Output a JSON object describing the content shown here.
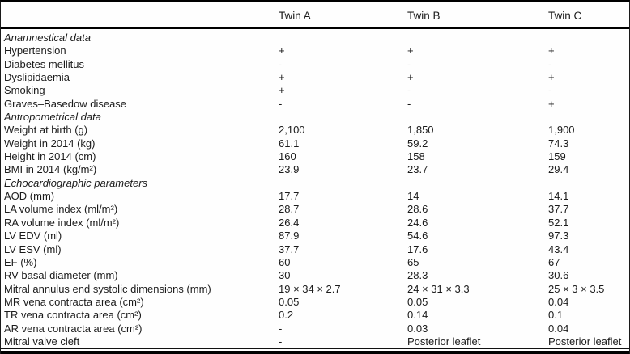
{
  "colors": {
    "text": "#1b1b1b",
    "rule": "#000000",
    "background": "#fefefe"
  },
  "table": {
    "columns": [
      "",
      "Twin A",
      "Twin B",
      "Twin C"
    ],
    "rows": [
      {
        "type": "section",
        "label": "Anamnestical data"
      },
      {
        "type": "data",
        "label": "Hypertension",
        "values": [
          "+",
          "+",
          "+"
        ]
      },
      {
        "type": "data",
        "label": "Diabetes mellitus",
        "values": [
          "-",
          "-",
          "-"
        ]
      },
      {
        "type": "data",
        "label": "Dyslipidaemia",
        "values": [
          "+",
          "+",
          "+"
        ]
      },
      {
        "type": "data",
        "label": "Smoking",
        "values": [
          "+",
          "-",
          "-"
        ]
      },
      {
        "type": "data",
        "label": "Graves–Basedow disease",
        "values": [
          "-",
          "-",
          "+"
        ]
      },
      {
        "type": "section",
        "label": "Antropometrical data"
      },
      {
        "type": "data",
        "label": "Weight at birth (g)",
        "values": [
          "2,100",
          "1,850",
          "1,900"
        ]
      },
      {
        "type": "data",
        "label": "Weight in 2014 (kg)",
        "values": [
          "61.1",
          "59.2",
          "74.3"
        ]
      },
      {
        "type": "data",
        "label": "Height in 2014 (cm)",
        "values": [
          "160",
          "158",
          "159"
        ]
      },
      {
        "type": "data",
        "label": "BMI in 2014 (kg/m²)",
        "values": [
          "23.9",
          "23.7",
          "29.4"
        ]
      },
      {
        "type": "section",
        "label": "Echocardiographic parameters"
      },
      {
        "type": "data",
        "label": "AOD (mm)",
        "values": [
          "17.7",
          "14",
          "14.1"
        ]
      },
      {
        "type": "data",
        "label": "LA volume index (ml/m²)",
        "values": [
          "28.7",
          "28.6",
          "37.7"
        ]
      },
      {
        "type": "data",
        "label": "RA volume index (ml/m²)",
        "values": [
          "26.4",
          "24.6",
          "52.1"
        ]
      },
      {
        "type": "data",
        "label": "LV EDV (ml)",
        "values": [
          "87.9",
          "54.6",
          "97.3"
        ]
      },
      {
        "type": "data",
        "label": "LV ESV (ml)",
        "values": [
          "37.7",
          "17.6",
          "43.4"
        ]
      },
      {
        "type": "data",
        "label": "EF (%)",
        "values": [
          "60",
          "65",
          "67"
        ]
      },
      {
        "type": "data",
        "label": "RV basal diameter (mm)",
        "values": [
          "30",
          "28.3",
          "30.6"
        ]
      },
      {
        "type": "data",
        "label": "Mitral annulus end systolic dimensions (mm)",
        "values": [
          "19 × 34 × 2.7",
          "24 × 31 × 3.3",
          "25 × 3 × 3.5"
        ]
      },
      {
        "type": "data",
        "label": "MR vena contracta area (cm²)",
        "values": [
          "0.05",
          "0.05",
          "0.04"
        ]
      },
      {
        "type": "data",
        "label": "TR vena contracta area (cm²)",
        "values": [
          "0.2",
          "0.14",
          "0.1"
        ]
      },
      {
        "type": "data",
        "label": "AR vena contracta area (cm²)",
        "values": [
          "-",
          "0.03",
          "0.04"
        ]
      },
      {
        "type": "data",
        "label": "Mitral valve cleft",
        "values": [
          "-",
          "Posterior leaflet",
          "Posterior leaflet"
        ]
      }
    ]
  }
}
